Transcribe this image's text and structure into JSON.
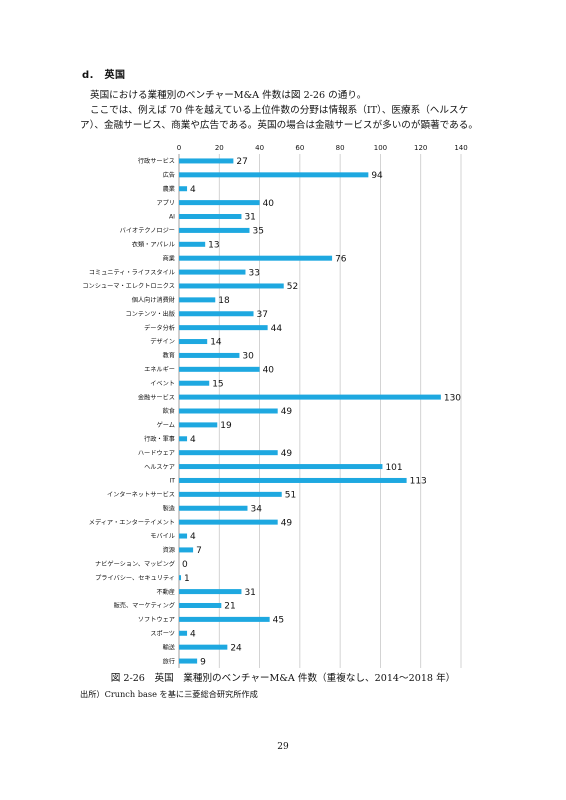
{
  "section": {
    "heading": "d.　英国"
  },
  "body": {
    "p1": "英国における業種別のベンチャーM&A 件数は図 2-26 の通り。",
    "p2": "ここでは、例えば 70 件を越えている上位件数の分野は情報系（IT）、医療系（ヘルスケア）、金融サービス、商業や広告である。英国の場合は金融サービスが多いのが顕著である。"
  },
  "chart_data": {
    "type": "bar",
    "orientation": "horizontal",
    "categories": [
      "行政サービス",
      "広告",
      "農業",
      "アプリ",
      "AI",
      "バイオテクノロジー",
      "衣類・アパレル",
      "商業",
      "コミュニティ・ライフスタイル",
      "コンシューマ・エレクトロニクス",
      "個人向け消費財",
      "コンテンツ・出版",
      "データ分析",
      "デザイン",
      "教育",
      "エネルギー",
      "イベント",
      "金融サービス",
      "飲食",
      "ゲーム",
      "行政・軍事",
      "ハードウェア",
      "ヘルスケア",
      "IT",
      "インターネットサービス",
      "製造",
      "メディア・エンターテイメント",
      "モバイル",
      "資源",
      "ナビゲーション、マッピング",
      "プライバシー、セキュリティ",
      "不動産",
      "販売、マーケティング",
      "ソフトウェア",
      "スポーツ",
      "輸送",
      "旅行"
    ],
    "values": [
      27,
      94,
      4,
      40,
      31,
      35,
      13,
      76,
      33,
      52,
      18,
      37,
      44,
      14,
      30,
      40,
      15,
      130,
      49,
      19,
      4,
      49,
      101,
      113,
      51,
      34,
      49,
      4,
      7,
      0,
      1,
      31,
      21,
      45,
      4,
      24,
      9
    ],
    "xlim": [
      0,
      140
    ],
    "xticks": [
      0,
      20,
      40,
      60,
      80,
      100,
      120,
      140
    ],
    "xaxis_position": "top",
    "grid": "vertical",
    "bar_color": "#1ea8e0",
    "grid_color": "#c8c8c8"
  },
  "caption": "図 2-26　英国　業種別のベンチャーM&A 件数（重複なし、2014～2018 年）",
  "source": "出所）Crunch base を基に三菱総合研究所作成",
  "page_number": "29"
}
